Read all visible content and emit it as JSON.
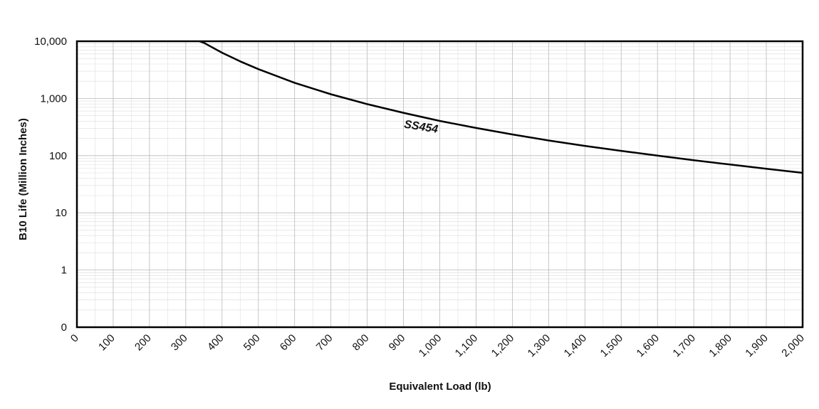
{
  "chart_data": {
    "type": "line",
    "title": "",
    "xlabel": "Equivalent Load (lb)",
    "ylabel": "B10 Life (Million Inches)",
    "xlim": [
      0,
      2000
    ],
    "ylim": [
      0.1,
      10000
    ],
    "yscale": "log",
    "grid": true,
    "x_ticks": [
      0,
      100,
      200,
      300,
      400,
      500,
      600,
      700,
      800,
      900,
      1000,
      1100,
      1200,
      1300,
      1400,
      1500,
      1600,
      1700,
      1800,
      1900,
      2000
    ],
    "x_tick_labels": [
      "0",
      "100",
      "200",
      "300",
      "400",
      "500",
      "600",
      "700",
      "800",
      "900",
      "1,000",
      "1,100",
      "1,200",
      "1,300",
      "1,400",
      "1,500",
      "1,600",
      "1,700",
      "1,800",
      "1,900",
      "2,000"
    ],
    "y_ticks": [
      0.1,
      1,
      10,
      100,
      1000,
      10000
    ],
    "y_tick_labels": [
      "0",
      "1",
      "10",
      "100",
      "1,000",
      "10,000"
    ],
    "series": [
      {
        "name": "SS454",
        "color": "#000000",
        "x": [
          337,
          350,
          400,
          450,
          500,
          600,
          700,
          800,
          900,
          1000,
          1100,
          1200,
          1300,
          1400,
          1500,
          1600,
          1700,
          1800,
          1900,
          2000
        ],
        "y": [
          10000,
          9400,
          6300,
          4450,
          3250,
          1880,
          1185,
          795,
          560,
          405,
          305,
          235,
          184,
          148,
          121,
          100,
          83,
          70,
          59,
          50
        ]
      }
    ],
    "annotations": [
      {
        "text": "SS454",
        "x": 1000,
        "y": 330
      }
    ]
  }
}
